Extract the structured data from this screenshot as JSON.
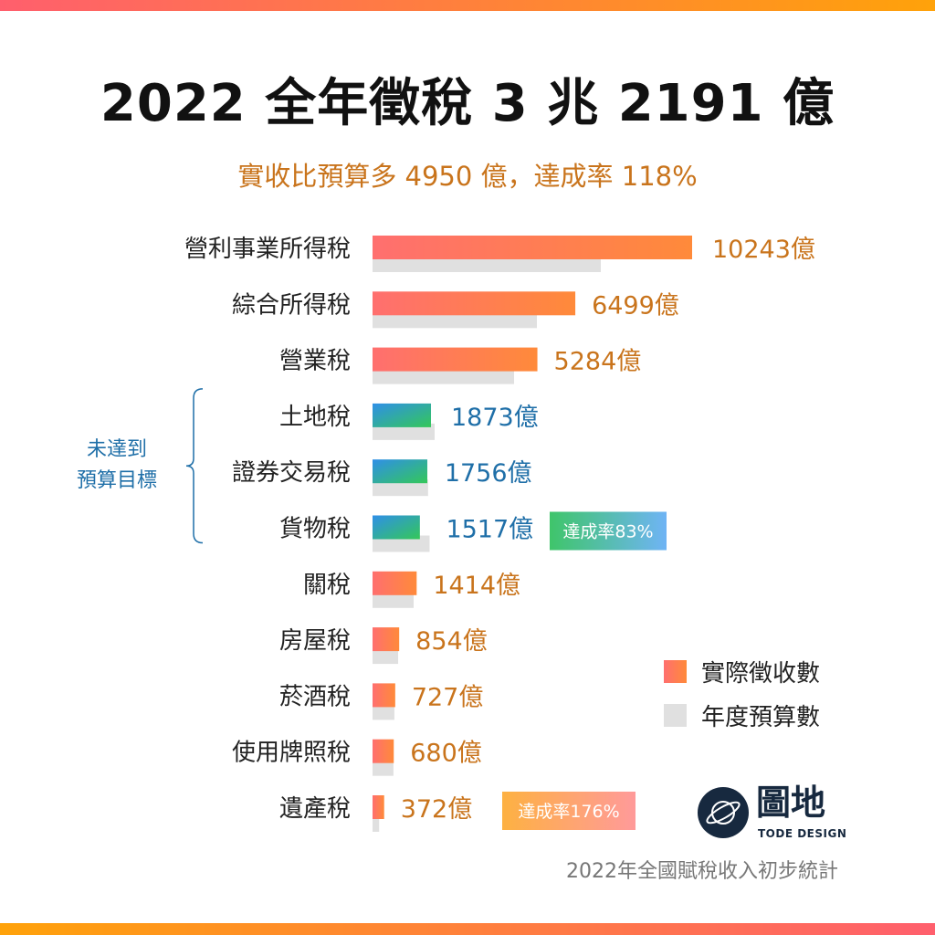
{
  "title": "2022 全年徵稅 3 兆 2191 億",
  "subtitle": "實收比預算多 4950 億，達成率 118%",
  "source": "2022年全國賦稅收入初步統計",
  "logo": {
    "name": "圖地",
    "sub": "TODE DESIGN"
  },
  "colors": {
    "actual_above": "#ff7a5c",
    "actual_below": "#2ea3e0",
    "budget": "#e0e0e0",
    "label_above": "#c9741c",
    "label_below": "#1f6fa8"
  },
  "chart_data": {
    "type": "bar",
    "orientation": "horizontal",
    "unit": "億",
    "categories": [
      "營利事業所得稅",
      "綜合所得稅",
      "營業稅",
      "土地稅",
      "證券交易稅",
      "貨物稅",
      "關稅",
      "房屋稅",
      "菸酒稅",
      "使用牌照稅",
      "遺產稅"
    ],
    "series": [
      {
        "name": "實際徵收數",
        "values": [
          10243,
          6499,
          5284,
          1873,
          1756,
          1517,
          1414,
          854,
          727,
          680,
          372
        ]
      },
      {
        "name": "年度預算數",
        "values": [
          7316,
          5268,
          4536,
          1990,
          1780,
          1828,
          1317,
          820,
          700,
          670,
          211
        ]
      }
    ],
    "value_labels": [
      "10243億",
      "6499億",
      "5284億",
      "1873億",
      "1756億",
      "1517億",
      "1414億",
      "854億",
      "727億",
      "680億",
      "372億"
    ],
    "below_budget_group": {
      "label_line1": "未達到",
      "label_line2": "預算目標",
      "categories": [
        "土地稅",
        "證券交易稅",
        "貨物稅"
      ]
    },
    "annotations": [
      {
        "category": "貨物稅",
        "text": "達成率83%"
      },
      {
        "category": "遺產稅",
        "text": "達成率176%"
      }
    ],
    "legend": {
      "position": "bottom-right",
      "items": [
        "實際徵收數",
        "年度預算數"
      ]
    },
    "grid": false
  }
}
